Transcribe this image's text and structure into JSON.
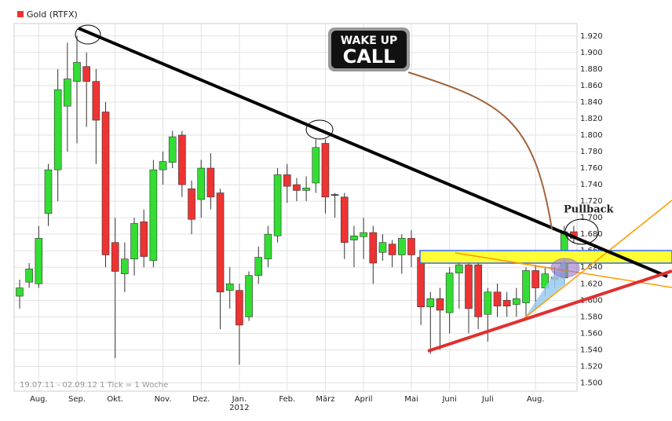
{
  "chart_data": {
    "type": "candlestick",
    "title": "Gold (RTFX)",
    "footer": "19.07.11 - 02.09.12   1 Tick = 1 Woche",
    "up_color": "#33dd33",
    "down_color": "#ee3333",
    "flat_color": "#000000",
    "open": [
      1605,
      1622,
      1620,
      1705,
      1758,
      1835,
      1865,
      1883,
      1865,
      1828,
      1670,
      1632,
      1650,
      1695,
      1648,
      1758,
      1767,
      1800,
      1735,
      1722,
      1760,
      1730,
      1612,
      1612,
      1580,
      1630,
      1650,
      1678,
      1752,
      1740,
      1733,
      1742,
      1790,
      1728,
      1725,
      1673,
      1677,
      1682,
      1658,
      1668,
      1655,
      1675,
      1652,
      1592,
      1602,
      1585,
      1633,
      1643,
      1643,
      1583,
      1610,
      1600,
      1595,
      1597,
      1636,
      1615,
      1628,
      1627,
      1683
    ],
    "high": [
      1625,
      1645,
      1690,
      1765,
      1880,
      1912,
      1920,
      1900,
      1880,
      1840,
      1700,
      1670,
      1700,
      1710,
      1770,
      1780,
      1805,
      1805,
      1745,
      1770,
      1778,
      1735,
      1640,
      1620,
      1635,
      1665,
      1690,
      1760,
      1765,
      1748,
      1750,
      1795,
      1795,
      1730,
      1730,
      1690,
      1700,
      1690,
      1680,
      1673,
      1680,
      1685,
      1655,
      1610,
      1615,
      1640,
      1650,
      1650,
      1655,
      1615,
      1620,
      1610,
      1615,
      1640,
      1643,
      1640,
      1640,
      1690,
      1690
    ],
    "low": [
      1590,
      1615,
      1615,
      1690,
      1720,
      1780,
      1790,
      1810,
      1765,
      1640,
      1530,
      1610,
      1630,
      1640,
      1640,
      1740,
      1760,
      1725,
      1680,
      1700,
      1710,
      1565,
      1590,
      1522,
      1575,
      1620,
      1640,
      1670,
      1718,
      1720,
      1720,
      1730,
      1705,
      1700,
      1650,
      1640,
      1650,
      1620,
      1648,
      1640,
      1632,
      1640,
      1570,
      1535,
      1540,
      1560,
      1590,
      1560,
      1565,
      1550,
      1580,
      1580,
      1580,
      1580,
      1590,
      1605,
      1615,
      1620,
      1670
    ],
    "close": [
      1615,
      1638,
      1675,
      1758,
      1855,
      1868,
      1888,
      1865,
      1818,
      1655,
      1635,
      1650,
      1693,
      1653,
      1758,
      1768,
      1798,
      1740,
      1698,
      1760,
      1725,
      1610,
      1620,
      1570,
      1630,
      1652,
      1680,
      1752,
      1738,
      1733,
      1736,
      1785,
      1725,
      1728,
      1670,
      1678,
      1682,
      1645,
      1670,
      1655,
      1675,
      1655,
      1592,
      1602,
      1588,
      1633,
      1643,
      1590,
      1580,
      1610,
      1593,
      1593,
      1602,
      1636,
      1615,
      1632,
      1625,
      1683,
      1675
    ],
    "ylim": [
      1490,
      1935
    ],
    "yticks": [
      {
        "value": 1500,
        "label": "1.500"
      },
      {
        "value": 1520,
        "label": "1.520"
      },
      {
        "value": 1540,
        "label": "1.540"
      },
      {
        "value": 1560,
        "label": "1.560"
      },
      {
        "value": 1580,
        "label": "1.580"
      },
      {
        "value": 1600,
        "label": "1.600"
      },
      {
        "value": 1620,
        "label": "1.620"
      },
      {
        "value": 1640,
        "label": "1.640"
      },
      {
        "value": 1660,
        "label": "1.660"
      },
      {
        "value": 1680,
        "label": "1.680"
      },
      {
        "value": 1700,
        "label": "1.700"
      },
      {
        "value": 1720,
        "label": "1.720"
      },
      {
        "value": 1740,
        "label": "1.740"
      },
      {
        "value": 1760,
        "label": "1.760"
      },
      {
        "value": 1780,
        "label": "1.780"
      },
      {
        "value": 1800,
        "label": "1.800"
      },
      {
        "value": 1820,
        "label": "1.820"
      },
      {
        "value": 1840,
        "label": "1.840"
      },
      {
        "value": 1860,
        "label": "1.860"
      },
      {
        "value": 1880,
        "label": "1.880"
      },
      {
        "value": 1900,
        "label": "1.900"
      },
      {
        "value": 1920,
        "label": "1.920"
      }
    ],
    "xticks": [
      {
        "value": 2,
        "label": "Aug."
      },
      {
        "value": 6,
        "label": "Sep."
      },
      {
        "value": 10,
        "label": "Okt."
      },
      {
        "value": 15,
        "label": "Nov."
      },
      {
        "value": 19,
        "label": "Dez."
      },
      {
        "value": 23,
        "label": "Jan."
      },
      {
        "value": 28,
        "label": "Feb."
      },
      {
        "value": 32,
        "label": "März"
      },
      {
        "value": 36,
        "label": "April"
      },
      {
        "value": 41,
        "label": "Mai"
      },
      {
        "value": 45,
        "label": "Juni"
      },
      {
        "value": 49,
        "label": "Juli"
      },
      {
        "value": 54,
        "label": "Aug."
      }
    ],
    "year_label": "2012",
    "annotations": {
      "pullback": "Pullback",
      "badge_top": "WAKE UP",
      "badge_bottom": "CALL"
    }
  }
}
